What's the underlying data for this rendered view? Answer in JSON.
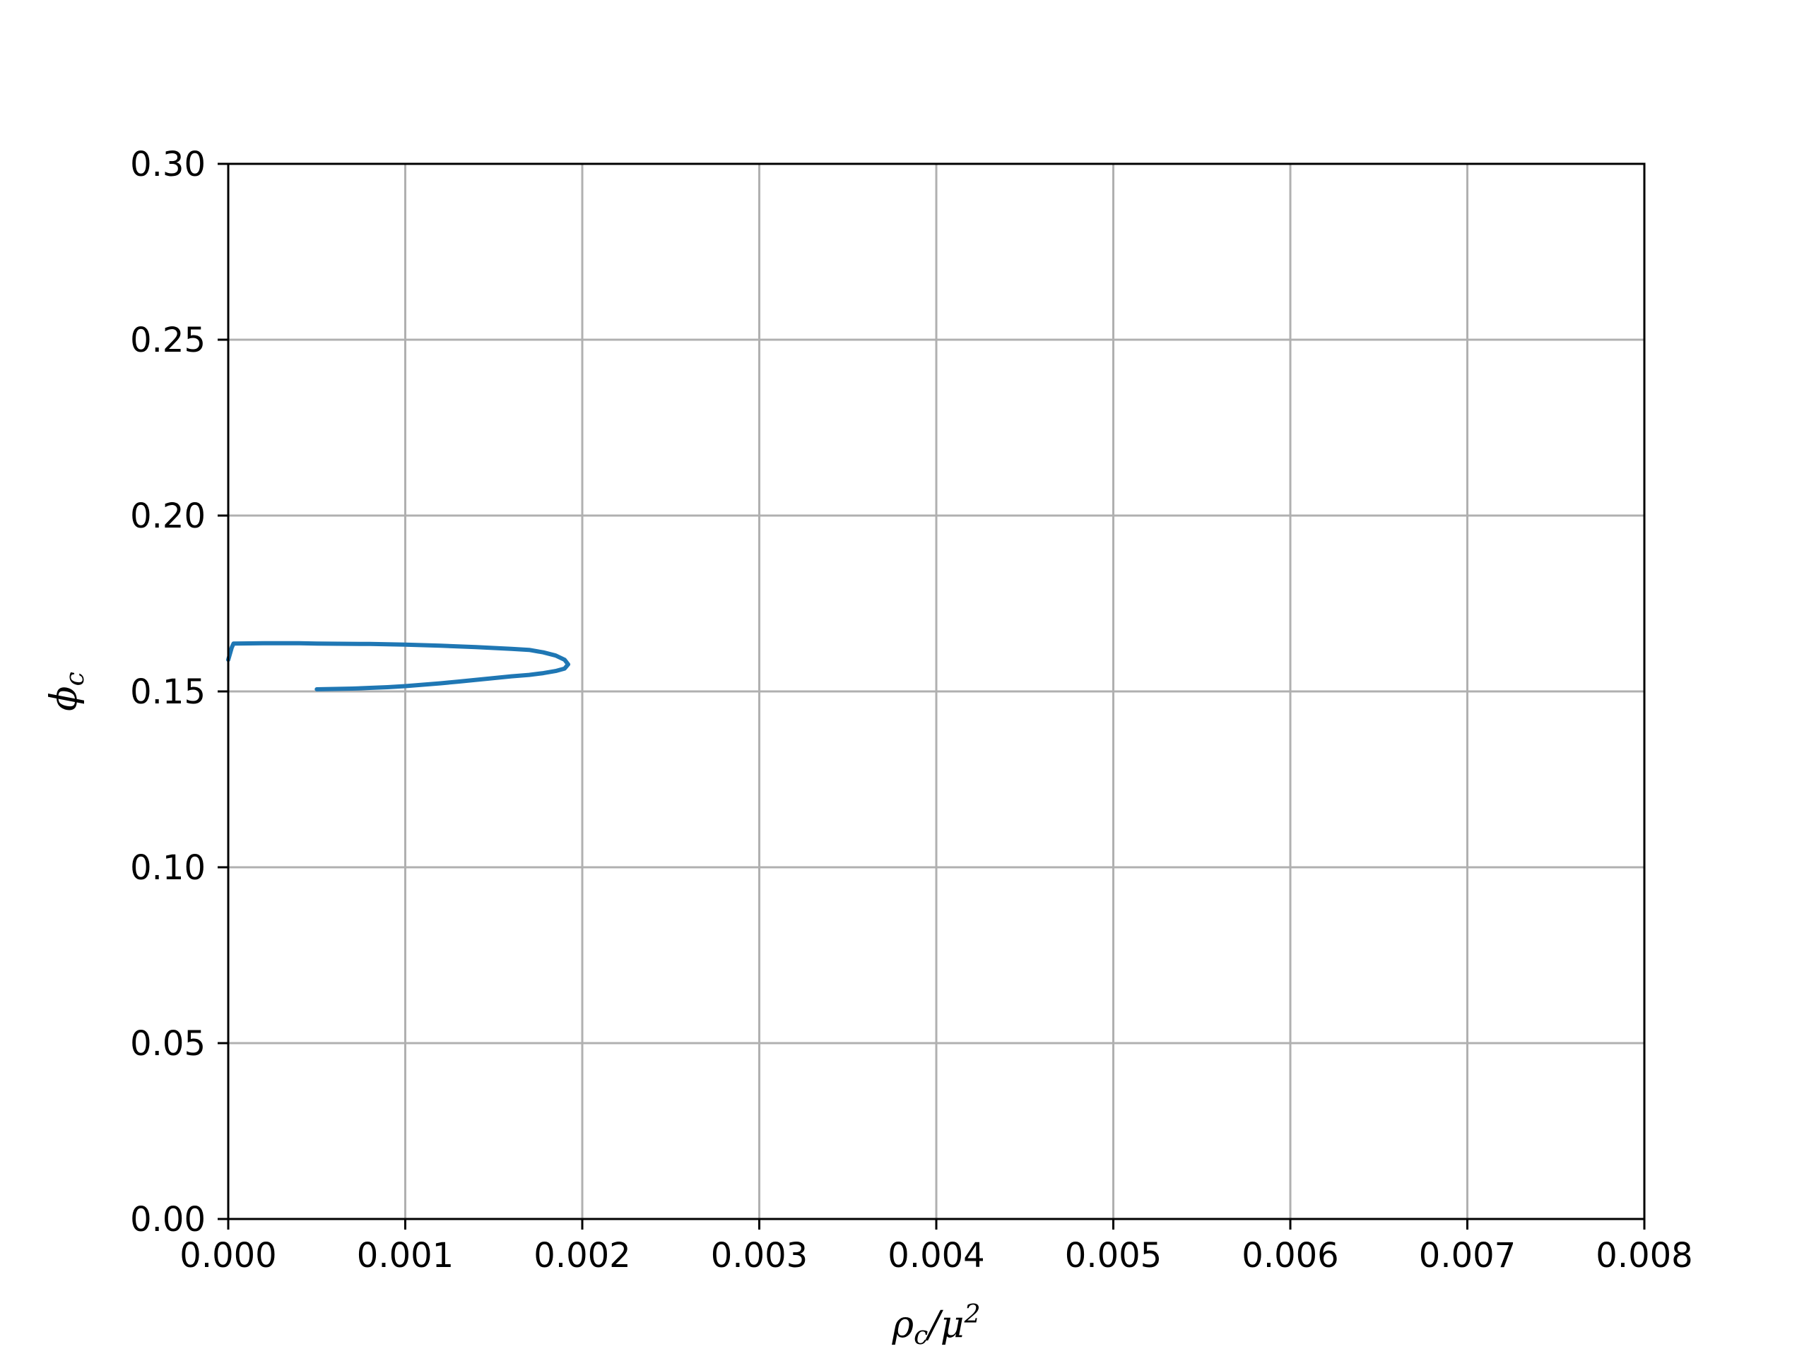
{
  "chart_data": {
    "type": "line",
    "title": "",
    "xlabel": "ρ_c/μ^2",
    "ylabel": "ϕ_c",
    "xlim": [
      0.0,
      0.008
    ],
    "ylim": [
      0.0,
      0.3
    ],
    "xticks": [
      "0.000",
      "0.001",
      "0.002",
      "0.003",
      "0.004",
      "0.005",
      "0.006",
      "0.007",
      "0.008"
    ],
    "yticks": [
      "0.00",
      "0.05",
      "0.10",
      "0.15",
      "0.20",
      "0.25",
      "0.30"
    ],
    "grid": true,
    "legend": "none",
    "series": [
      {
        "color": "#1f77b4",
        "x": [
          0.0,
          2e-05,
          3e-05,
          0.0002,
          0.0004,
          0.0005,
          0.0008,
          0.001,
          0.0012,
          0.0014,
          0.0016,
          0.0017,
          0.00178,
          0.00185,
          0.0019,
          0.00192,
          0.0019,
          0.00185,
          0.00178,
          0.0017,
          0.0016,
          0.0015,
          0.0014,
          0.0013,
          0.0012,
          0.0011,
          0.001,
          0.0009,
          0.0008,
          0.0007,
          0.0006,
          0.0005
        ],
        "y": [
          0.159,
          0.1625,
          0.1636,
          0.1637,
          0.1637,
          0.1636,
          0.1635,
          0.1633,
          0.163,
          0.1626,
          0.1621,
          0.1618,
          0.1611,
          0.1602,
          0.159,
          0.1577,
          0.1565,
          0.1558,
          0.1552,
          0.1547,
          0.1543,
          0.1538,
          0.1533,
          0.1528,
          0.1523,
          0.1519,
          0.1515,
          0.1512,
          0.151,
          0.1508,
          0.1507,
          0.1506
        ]
      }
    ]
  }
}
